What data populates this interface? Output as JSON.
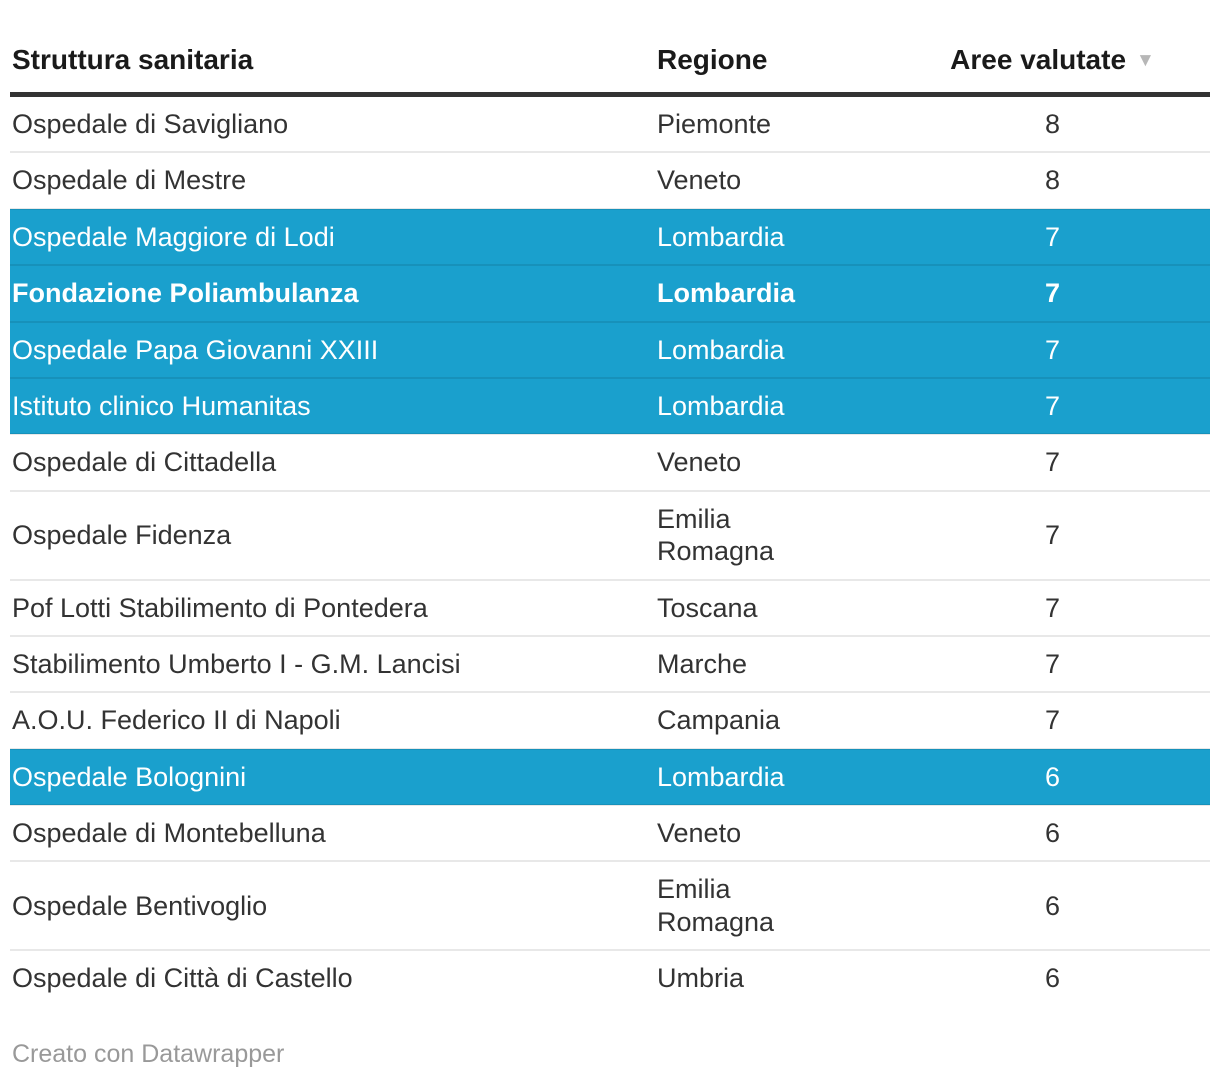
{
  "chart_data": {
    "type": "table",
    "columns": [
      "Struttura sanitaria",
      "Regione",
      "Aree valutate"
    ],
    "sort": {
      "column": "Aree valutate",
      "direction": "desc"
    },
    "sort_icon": "▼",
    "rows": [
      {
        "struttura": "Ospedale di Savigliano",
        "regione": "Piemonte",
        "aree": "8",
        "highlight": false,
        "bold": false
      },
      {
        "struttura": "Ospedale di Mestre",
        "regione": "Veneto",
        "aree": "8",
        "highlight": false,
        "bold": false
      },
      {
        "struttura": "Ospedale Maggiore di Lodi",
        "regione": "Lombardia",
        "aree": "7",
        "highlight": true,
        "bold": false
      },
      {
        "struttura": "Fondazione Poliambulanza",
        "regione": "Lombardia",
        "aree": "7",
        "highlight": true,
        "bold": true
      },
      {
        "struttura": "Ospedale Papa Giovanni XXIII",
        "regione": "Lombardia",
        "aree": "7",
        "highlight": true,
        "bold": false
      },
      {
        "struttura": "Istituto clinico Humanitas",
        "regione": "Lombardia",
        "aree": "7",
        "highlight": true,
        "bold": false
      },
      {
        "struttura": "Ospedale di Cittadella",
        "regione": "Veneto",
        "aree": "7",
        "highlight": false,
        "bold": false
      },
      {
        "struttura": "Ospedale Fidenza",
        "regione": "Emilia\nRomagna",
        "aree": "7",
        "highlight": false,
        "bold": false
      },
      {
        "struttura": "Pof Lotti Stabilimento di Pontedera",
        "regione": "Toscana",
        "aree": "7",
        "highlight": false,
        "bold": false
      },
      {
        "struttura": "Stabilimento Umberto I - G.M. Lancisi",
        "regione": "Marche",
        "aree": "7",
        "highlight": false,
        "bold": false
      },
      {
        "struttura": "A.O.U. Federico II di Napoli",
        "regione": "Campania",
        "aree": "7",
        "highlight": false,
        "bold": false
      },
      {
        "struttura": "Ospedale Bolognini",
        "regione": "Lombardia",
        "aree": "6",
        "highlight": true,
        "bold": false
      },
      {
        "struttura": "Ospedale di Montebelluna",
        "regione": "Veneto",
        "aree": "6",
        "highlight": false,
        "bold": false
      },
      {
        "struttura": "Ospedale Bentivoglio",
        "regione": "Emilia\nRomagna",
        "aree": "6",
        "highlight": false,
        "bold": false
      },
      {
        "struttura": "Ospedale di Città di Castello",
        "regione": "Umbria",
        "aree": "6",
        "highlight": false,
        "bold": false
      }
    ],
    "legend_position": "none",
    "grid": "horizontal-dividers"
  },
  "header": {
    "col_struttura": "Struttura sanitaria",
    "col_regione": "Regione",
    "col_aree": "Aree valutate",
    "sort_icon": "▼"
  },
  "footer": {
    "credit": "Creato con Datawrapper"
  },
  "colors": {
    "highlight_row_bg": "#1aa0cd",
    "highlight_row_text": "#ffffff",
    "header_rule": "#333333",
    "row_divider": "#e8e8e8",
    "header_text": "#1a1a1a",
    "body_text": "#333333",
    "footer_text": "#999999",
    "sort_arrow": "#b7b7b7",
    "background": "#ffffff"
  }
}
